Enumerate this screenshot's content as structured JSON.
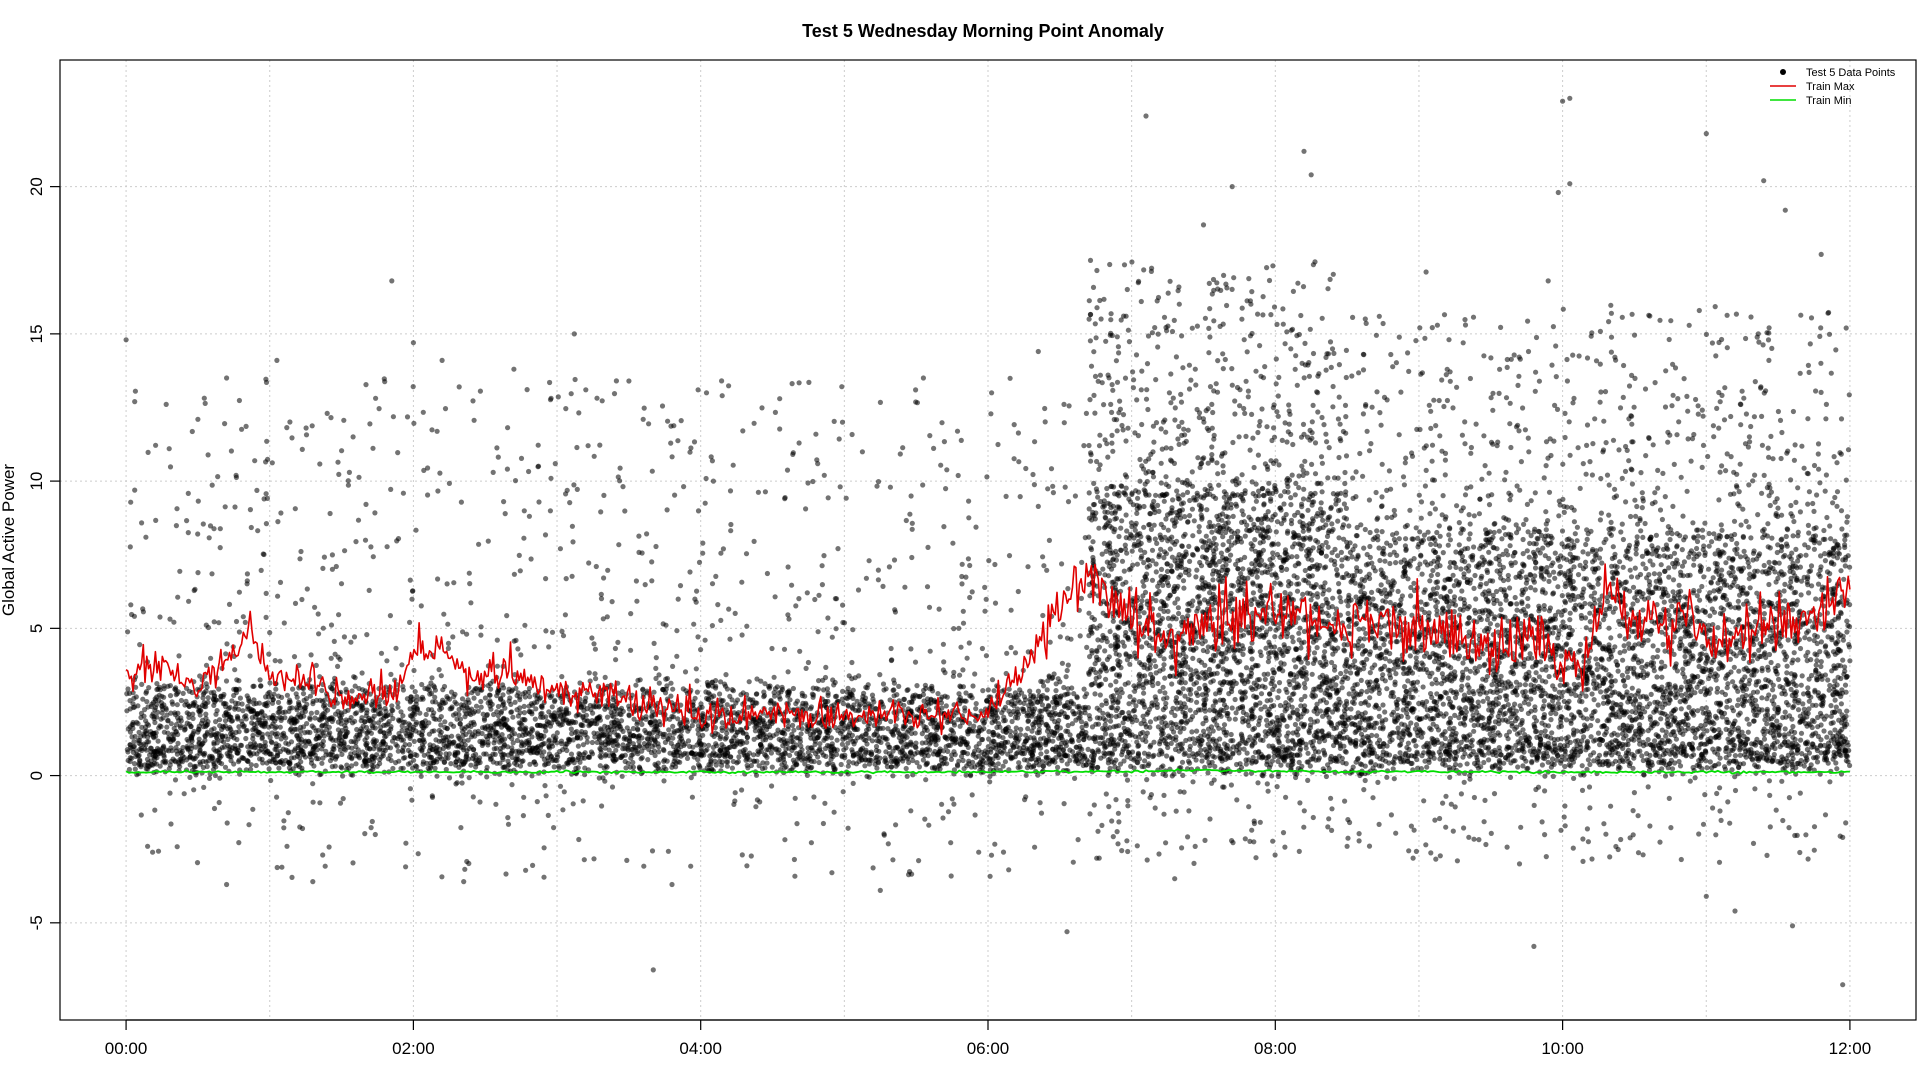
{
  "chart_data": {
    "type": "scatter",
    "title": "Test 5 Wednesday Morning Point Anomaly",
    "xlabel": "",
    "ylabel": "Global Active Power",
    "x_ticks": [
      "00:00",
      "02:00",
      "04:00",
      "06:00",
      "08:00",
      "10:00",
      "12:00"
    ],
    "x_tick_hours": [
      0,
      2,
      4,
      6,
      8,
      10,
      12
    ],
    "y_ticks": [
      -5,
      0,
      5,
      10,
      15,
      20
    ],
    "xlim_hours": [
      -0.46,
      12.46
    ],
    "ylim": [
      -8.3,
      24.3
    ],
    "grid": true,
    "legend_position": "top-right",
    "legend": [
      {
        "label": "Test 5 Data Points",
        "symbol": "point",
        "color": "#000000"
      },
      {
        "label": "Train Max",
        "symbol": "line",
        "color": "#e00000"
      },
      {
        "label": "Train Min",
        "symbol": "line",
        "color": "#00dd00"
      }
    ],
    "series": [
      {
        "name": "Train Max",
        "color": "#e00000",
        "x_hours": [
          0.0,
          0.25,
          0.5,
          0.75,
          0.85,
          1.0,
          1.25,
          1.5,
          1.75,
          1.9,
          2.0,
          2.2,
          2.4,
          2.6,
          2.8,
          3.0,
          3.25,
          3.5,
          3.75,
          4.0,
          4.25,
          4.5,
          4.75,
          5.0,
          5.25,
          5.5,
          5.75,
          6.0,
          6.2,
          6.35,
          6.5,
          6.7,
          6.85,
          7.0,
          7.25,
          7.5,
          7.75,
          8.0,
          8.25,
          8.5,
          8.75,
          9.0,
          9.25,
          9.5,
          9.75,
          9.9,
          10.0,
          10.15,
          10.3,
          10.5,
          10.75,
          10.9,
          11.0,
          11.25,
          11.5,
          11.75,
          12.0
        ],
        "values": [
          3.4,
          3.6,
          2.9,
          4.2,
          5.0,
          3.4,
          3.3,
          2.6,
          2.7,
          3.0,
          4.2,
          4.3,
          3.3,
          3.4,
          3.1,
          2.7,
          2.9,
          2.6,
          2.1,
          1.9,
          2.0,
          2.2,
          2.0,
          1.9,
          2.0,
          2.0,
          1.9,
          2.1,
          3.4,
          4.4,
          5.6,
          6.9,
          6.2,
          5.1,
          4.6,
          5.2,
          5.2,
          5.7,
          5.3,
          5.0,
          5.4,
          4.9,
          4.7,
          4.4,
          4.5,
          4.4,
          3.9,
          3.8,
          6.3,
          5.4,
          5.1,
          5.8,
          4.4,
          4.9,
          5.0,
          5.4,
          6.3
        ]
      },
      {
        "name": "Train Min",
        "color": "#00dd00",
        "x_hours": [
          0.0,
          1.0,
          2.0,
          3.0,
          4.0,
          5.0,
          6.0,
          7.0,
          7.5,
          8.0,
          8.5,
          9.0,
          10.0,
          11.0,
          12.0
        ],
        "values": [
          0.12,
          0.12,
          0.12,
          0.12,
          0.12,
          0.12,
          0.12,
          0.14,
          0.18,
          0.15,
          0.13,
          0.14,
          0.12,
          0.12,
          0.12
        ]
      },
      {
        "name": "Test 5 Data Points",
        "color": "#000000",
        "sampled_points": [
          [
            0.0,
            14.8
          ],
          [
            0.06,
            12.7
          ],
          [
            0.3,
            11.1
          ],
          [
            0.5,
            12.1
          ],
          [
            0.7,
            13.5
          ],
          [
            1.05,
            14.1
          ],
          [
            1.4,
            12.3
          ],
          [
            1.58,
            11.5
          ],
          [
            1.85,
            16.8
          ],
          [
            2.0,
            14.7
          ],
          [
            2.2,
            14.1
          ],
          [
            2.7,
            13.8
          ],
          [
            3.12,
            15.0
          ],
          [
            3.2,
            13.1
          ],
          [
            3.5,
            13.4
          ],
          [
            3.6,
            12.1
          ],
          [
            4.15,
            12.9
          ],
          [
            4.55,
            12.8
          ],
          [
            5.55,
            13.5
          ],
          [
            6.35,
            14.4
          ],
          [
            6.9,
            14.9
          ],
          [
            7.1,
            22.4
          ],
          [
            7.5,
            18.7
          ],
          [
            7.7,
            20.0
          ],
          [
            8.2,
            21.2
          ],
          [
            8.25,
            20.4
          ],
          [
            9.05,
            17.1
          ],
          [
            9.9,
            16.8
          ],
          [
            9.97,
            19.8
          ],
          [
            10.0,
            22.9
          ],
          [
            10.05,
            23.0
          ],
          [
            10.05,
            20.1
          ],
          [
            11.0,
            21.8
          ],
          [
            11.4,
            20.2
          ],
          [
            11.55,
            19.2
          ],
          [
            11.8,
            17.7
          ],
          [
            0.15,
            -2.4
          ],
          [
            0.7,
            -3.7
          ],
          [
            1.3,
            -3.6
          ],
          [
            2.35,
            -3.6
          ],
          [
            3.8,
            -3.7
          ],
          [
            3.67,
            -6.6
          ],
          [
            5.25,
            -3.9
          ],
          [
            6.55,
            -5.3
          ],
          [
            7.3,
            -3.5
          ],
          [
            8.5,
            -2.4
          ],
          [
            9.7,
            -3.0
          ],
          [
            9.8,
            -5.8
          ],
          [
            11.0,
            -4.1
          ],
          [
            11.2,
            -4.6
          ],
          [
            11.6,
            -5.1
          ],
          [
            11.95,
            -7.1
          ],
          [
            11.95,
            -2.1
          ]
        ]
      }
    ],
    "point_clouds": [
      {
        "x_hours": [
          0.0,
          6.7
        ],
        "dense_band": [
          0.4,
          2.9
        ],
        "scatter_range": [
          -3.5,
          13.5
        ],
        "dense_count": 4200,
        "sparse_count": 900
      },
      {
        "x_hours": [
          6.7,
          8.5
        ],
        "dense_band": [
          0.3,
          9.5
        ],
        "scatter_range": [
          -3.0,
          17.5
        ],
        "dense_count": 2600,
        "sparse_count": 600
      },
      {
        "x_hours": [
          8.5,
          12.0
        ],
        "dense_band": [
          0.4,
          8.0
        ],
        "scatter_range": [
          -3.0,
          16.0
        ],
        "dense_count": 4300,
        "sparse_count": 800
      }
    ]
  }
}
